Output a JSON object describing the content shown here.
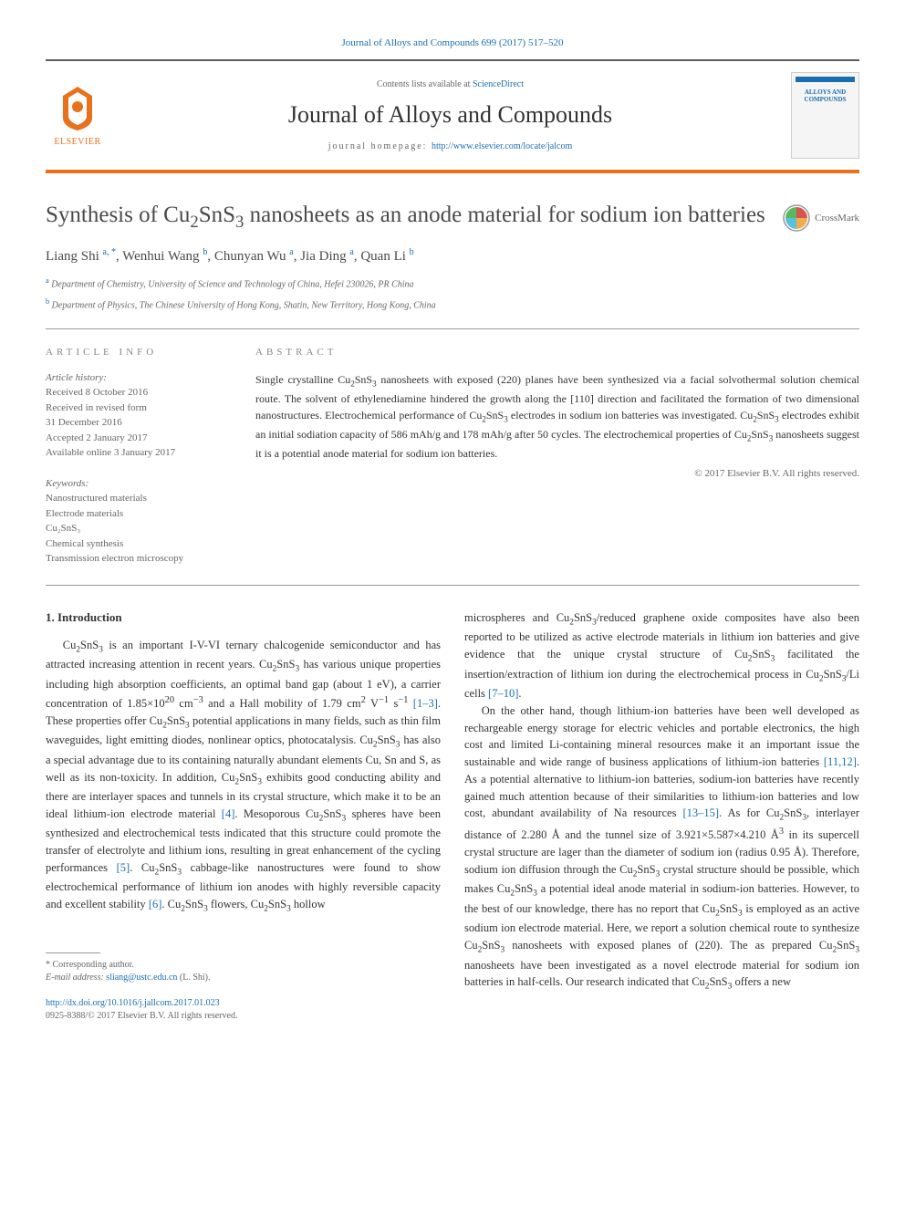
{
  "citation": "Journal of Alloys and Compounds 699 (2017) 517–520",
  "header": {
    "contents_prefix": "Contents lists available at ",
    "contents_link": "ScienceDirect",
    "journal_name": "Journal of Alloys and Compounds",
    "homepage_prefix": "journal homepage: ",
    "homepage_url": "http://www.elsevier.com/locate/jalcom",
    "elsevier_label": "ELSEVIER",
    "cover_title": "ALLOYS AND COMPOUNDS"
  },
  "article": {
    "title_html": "Synthesis of Cu<sub>2</sub>SnS<sub>3</sub> nanosheets as an anode material for sodium ion batteries",
    "crossmark_label": "CrossMark",
    "authors_html": "Liang Shi <sup>a, *</sup>, Wenhui Wang <sup>b</sup>, Chunyan Wu <sup>a</sup>, Jia Ding <sup>a</sup>, Quan Li <sup>b</sup>",
    "affiliations": [
      {
        "sup": "a",
        "text": "Department of Chemistry, University of Science and Technology of China, Hefei 230026, PR China"
      },
      {
        "sup": "b",
        "text": "Department of Physics, The Chinese University of Hong Kong, Shatin, New Territory, Hong Kong, China"
      }
    ]
  },
  "info": {
    "article_info_heading": "ARTICLE INFO",
    "abstract_heading": "ABSTRACT",
    "history_label": "Article history:",
    "history_lines": [
      "Received 8 October 2016",
      "Received in revised form",
      "31 December 2016",
      "Accepted 2 January 2017",
      "Available online 3 January 2017"
    ],
    "keywords_label": "Keywords:",
    "keywords": [
      "Nanostructured materials",
      "Electrode materials",
      "Cu₂SnS₃",
      "Chemical synthesis",
      "Transmission electron microscopy"
    ],
    "abstract_html": "Single crystalline Cu<sub>2</sub>SnS<sub>3</sub> nanosheets with exposed (220) planes have been synthesized via a facial solvothermal solution chemical route. The solvent of ethylenediamine hindered the growth along the [110] direction and facilitated the formation of two dimensional nanostructures. Electrochemical performance of Cu<sub>2</sub>SnS<sub>3</sub> electrodes in sodium ion batteries was investigated. Cu<sub>2</sub>SnS<sub>3</sub> electrodes exhibit an initial sodiation capacity of 586 mAh/g and 178 mAh/g after 50 cycles. The electrochemical properties of Cu<sub>2</sub>SnS<sub>3</sub> nanosheets suggest it is a potential anode material for sodium ion batteries.",
    "copyright": "© 2017 Elsevier B.V. All rights reserved."
  },
  "body": {
    "section_heading": "1. Introduction",
    "col1_html": "Cu<sub>2</sub>SnS<sub>3</sub> is an important I-V-VI ternary chalcogenide semiconductor and has attracted increasing attention in recent years. Cu<sub>2</sub>SnS<sub>3</sub> has various unique properties including high absorption coefficients, an optimal band gap (about 1 eV), a carrier concentration of 1.85×10<sup>20</sup> cm<sup>−3</sup> and a Hall mobility of 1.79 cm<sup>2</sup> V<sup>−1</sup> s<sup>−1</sup> <span class=\"ref\">[1–3]</span>. These properties offer Cu<sub>2</sub>SnS<sub>3</sub> potential applications in many fields, such as thin film waveguides, light emitting diodes, nonlinear optics, photocatalysis. Cu<sub>2</sub>SnS<sub>3</sub> has also a special advantage due to its containing naturally abundant elements Cu, Sn and S, as well as its non-toxicity. In addition, Cu<sub>2</sub>SnS<sub>3</sub> exhibits good conducting ability and there are interlayer spaces and tunnels in its crystal structure, which make it to be an ideal lithium-ion electrode material <span class=\"ref\">[4]</span>. Mesoporous Cu<sub>2</sub>SnS<sub>3</sub> spheres have been synthesized and electrochemical tests indicated that this structure could promote the transfer of electrolyte and lithium ions, resulting in great enhancement of the cycling performances <span class=\"ref\">[5]</span>. Cu<sub>2</sub>SnS<sub>3</sub> cabbage-like nanostructures were found to show electrochemical performance of lithium ion anodes with highly reversible capacity and excellent stability <span class=\"ref\">[6]</span>. Cu<sub>2</sub>SnS<sub>3</sub> flowers, Cu<sub>2</sub>SnS<sub>3</sub> hollow",
    "col2_p1_html": "microspheres and Cu<sub>2</sub>SnS<sub>3</sub>/reduced graphene oxide composites have also been reported to be utilized as active electrode materials in lithium ion batteries and give evidence that the unique crystal structure of Cu<sub>2</sub>SnS<sub>3</sub> facilitated the insertion/extraction of lithium ion during the electrochemical process in Cu<sub>2</sub>SnS<sub>3</sub>/Li cells <span class=\"ref\">[7–10]</span>.",
    "col2_p2_html": "On the other hand, though lithium-ion batteries have been well developed as rechargeable energy storage for electric vehicles and portable electronics, the high cost and limited Li-containing mineral resources make it an important issue the sustainable and wide range of business applications of lithium-ion batteries <span class=\"ref\">[11,12]</span>. As a potential alternative to lithium-ion batteries, sodium-ion batteries have recently gained much attention because of their similarities to lithium-ion batteries and low cost, abundant availability of Na resources <span class=\"ref\">[13–15]</span>. As for Cu<sub>2</sub>SnS<sub>3</sub>, interlayer distance of 2.280 Å and the tunnel size of 3.921×5.587×4.210 Å<sup>3</sup> in its supercell crystal structure are lager than the diameter of sodium ion (radius 0.95 Å). Therefore, sodium ion diffusion through the Cu<sub>2</sub>SnS<sub>3</sub> crystal structure should be possible, which makes Cu<sub>2</sub>SnS<sub>3</sub> a potential ideal anode material in sodium-ion batteries. However, to the best of our knowledge, there has no report that Cu<sub>2</sub>SnS<sub>3</sub> is employed as an active sodium ion electrode material. Here, we report a solution chemical route to synthesize Cu<sub>2</sub>SnS<sub>3</sub> nanosheets with exposed planes of (220). The as prepared Cu<sub>2</sub>SnS<sub>3</sub> nanosheets have been investigated as a novel electrode material for sodium ion batteries in half-cells. Our research indicated that Cu<sub>2</sub>SnS<sub>3</sub> offers a new"
  },
  "footer": {
    "corresponding": "* Corresponding author.",
    "email_label": "E-mail address:",
    "email": "sliang@ustc.edu.cn",
    "email_name": "(L. Shi).",
    "doi": "http://dx.doi.org/10.1016/j.jallcom.2017.01.023",
    "issn": "0925-8388/© 2017 Elsevier B.V. All rights reserved."
  },
  "colors": {
    "link": "#1a6eb0",
    "accent": "#e8711c",
    "text": "#333333",
    "muted": "#666666"
  }
}
